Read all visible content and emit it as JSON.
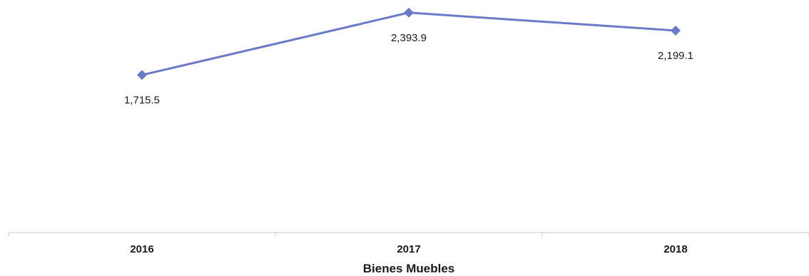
{
  "chart_data": {
    "type": "line",
    "categories": [
      "2016",
      "2017",
      "2018"
    ],
    "series": [
      {
        "values": [
          1715.5,
          2393.9,
          2199.1
        ]
      }
    ],
    "data_labels": [
      "1,715.5",
      "2,393.9",
      "2,199.1"
    ],
    "xlabel": "Bienes Muebles",
    "ylim": [
      0,
      2400
    ],
    "grid": false,
    "legend": "none",
    "colors": {
      "series": "#6b79c9",
      "axis": "#c8c8c8",
      "text": "#1a1a1a"
    }
  }
}
